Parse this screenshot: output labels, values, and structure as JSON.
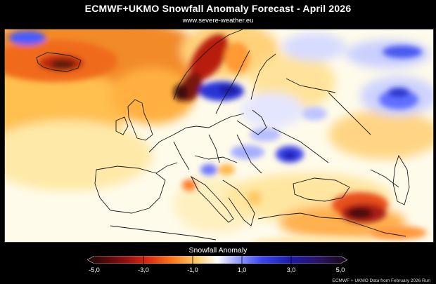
{
  "header": {
    "title": "ECMWF+UKMO Snowfall Anomaly Forecast  -  April 2026",
    "subtitle": "www.severe-weather.eu"
  },
  "legend": {
    "title": "Snowfall Anomaly",
    "min": -5.0,
    "max": 5.0,
    "ticks": [
      "-5,0",
      "-3,0",
      "-1,0",
      "1,0",
      "3,0",
      "5,0"
    ],
    "tick_values": [
      -5,
      -3,
      -1,
      1,
      3,
      5
    ],
    "colors": {
      "strong_negative": "#3a0a0a",
      "negative": "#e83a10",
      "mild_negative": "#ffd070",
      "neutral": "#ffffff",
      "mild_positive": "#7f86ff",
      "positive": "#1f1fc8",
      "strong_positive": "#241044"
    }
  },
  "map": {
    "background_color": "#fffbe8",
    "coastline_color": "#1a1a1a"
  },
  "footer": {
    "credit": "ECMWF + UKMO Data from February 2026 Run"
  }
}
